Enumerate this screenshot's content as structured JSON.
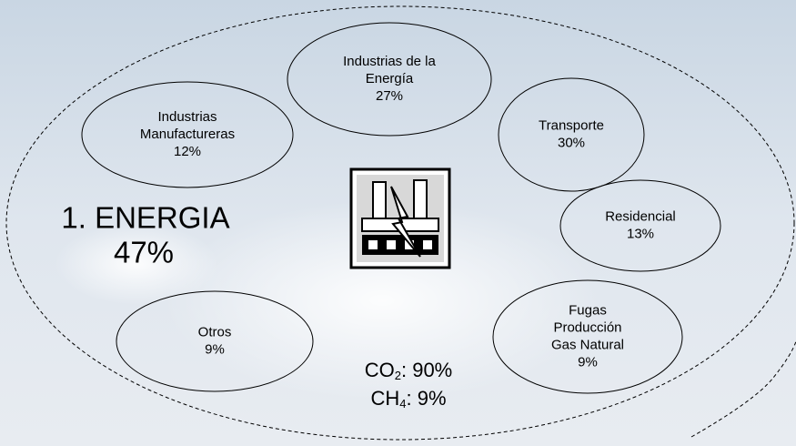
{
  "title": "1. ENERGIA",
  "share": "47%",
  "nodes": [
    {
      "lines": [
        "Industrias de la",
        "Energía"
      ],
      "percent": "27%"
    },
    {
      "lines": [
        "Industrias",
        "Manufactureras"
      ],
      "percent": "12%"
    },
    {
      "lines": [
        "Transporte"
      ],
      "percent": "30%"
    },
    {
      "lines": [
        "Residencial"
      ],
      "percent": "13%"
    },
    {
      "lines": [
        "Fugas",
        "Producción",
        "Gas Natural"
      ],
      "percent": "9%"
    },
    {
      "lines": [
        "Otros"
      ],
      "percent": "9%"
    }
  ],
  "gases": [
    {
      "formula": "CO",
      "subscript": "2",
      "share": ": 90%"
    },
    {
      "formula": "CH",
      "subscript": "4",
      "share": ": 9%"
    }
  ]
}
